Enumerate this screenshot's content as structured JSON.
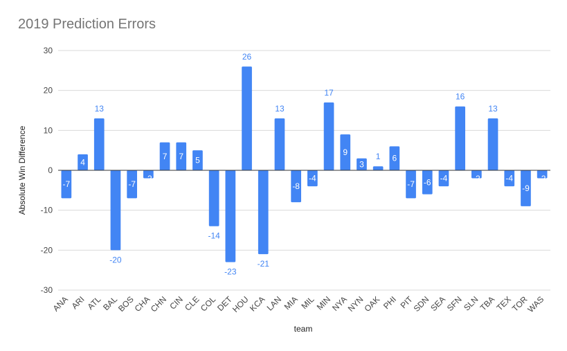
{
  "chart_data": {
    "type": "bar",
    "title": "2019 Prediction Errors",
    "xlabel": "team",
    "ylabel": "Absolute Win Difference",
    "ylim": [
      -30,
      30
    ],
    "yticks": [
      30,
      20,
      10,
      0,
      -10,
      -20,
      -30
    ],
    "grid": true,
    "bar_color": "#4285f4",
    "label_inside_color": "#ffffff",
    "label_outside_color": "#4285f4",
    "categories": [
      "ANA",
      "ARI",
      "ATL",
      "BAL",
      "BOS",
      "CHA",
      "CHN",
      "CIN",
      "CLE",
      "COL",
      "DET",
      "HOU",
      "KCA",
      "LAN",
      "MIA",
      "MIL",
      "MIN",
      "NYA",
      "NYN",
      "OAK",
      "PHI",
      "PIT",
      "SDN",
      "SEA",
      "SFN",
      "SLN",
      "TBA",
      "TEX",
      "TOR",
      "WAS"
    ],
    "values": [
      -7,
      4,
      13,
      -20,
      -7,
      -2,
      7,
      7,
      5,
      -14,
      -23,
      26,
      -21,
      13,
      -8,
      -4,
      17,
      9,
      3,
      1,
      6,
      -7,
      -6,
      -4,
      16,
      -2,
      13,
      -4,
      -9,
      -2
    ]
  }
}
